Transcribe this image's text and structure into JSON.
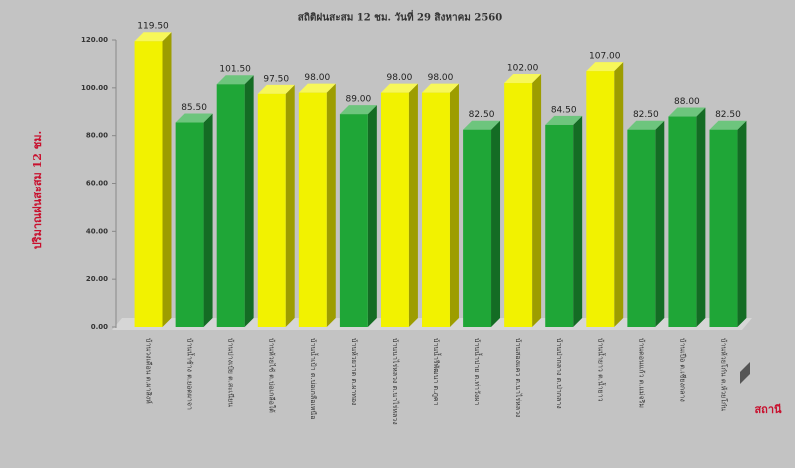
{
  "chart_data": {
    "type": "bar3d",
    "title": "สถิติฝนสะสม 12 ชม. วันที่ 29 สิงหาคม 2560",
    "y_label": "ปริมาณฝนสะสม 12 ชม.",
    "x_label": "สถานี",
    "categories": [
      "บ้านวงเดือน ต.ผาสิงห์",
      "บ้านน้ำช้าง ต.ยอดผาจา",
      "บ้านปางเป๋ย ต.สะเนียน",
      "บ้านห้วยไซ้ ต.บ่อเกลือใต้",
      "บ้านน้ำเป้า ต.บ่อเกลือเหนือ",
      "บ้านห้วยวาด ต.ผาทอง",
      "บ้านนาไร่หลวง ต.นาไร่หลวง",
      "บ้านน้ำรีพัฒนา ต.ภูคา",
      "บ้านน้ำปาย ต.ท่าวังผา",
      "บ้านสองแคว ต.นาไร่หลวง",
      "บ้านป่ากลาง ต.ป่ากลาง",
      "บ้านน้ำยาว ต.น้ำยาว",
      "บ้านดอนแก้ว ต.แม่จริม",
      "บ้านเปือ ต.เชียงกลาง",
      "บ้านห้วยโก๋น ต.ห้วยโก๋น"
    ],
    "values": [
      119.5,
      85.5,
      101.5,
      97.5,
      98,
      89,
      98,
      98,
      82.5,
      102,
      84.5,
      107,
      82.5,
      88,
      82.5
    ],
    "value_labels": [
      "119.50",
      "85.50",
      "101.50",
      "97.50",
      "98.00",
      "89.00",
      "98.00",
      "98.00",
      "82.50",
      "102.00",
      "84.50",
      "107.00",
      "82.50",
      "88.00",
      "82.50"
    ],
    "colors": [
      "#f2f200",
      "#1fa637",
      "#1fa637",
      "#f2f200",
      "#f2f200",
      "#1fa637",
      "#f2f200",
      "#f2f200",
      "#1fa637",
      "#f2f200",
      "#1fa637",
      "#f2f200",
      "#1fa637",
      "#1fa637",
      "#1fa637"
    ],
    "ylim": [
      0,
      120
    ],
    "yticks": [
      {
        "value": 0,
        "label": "0.00"
      },
      {
        "value": 20,
        "label": "20.00"
      },
      {
        "value": 40,
        "label": "40.00"
      },
      {
        "value": 60,
        "label": "60.00"
      },
      {
        "value": 80,
        "label": "80.00"
      },
      {
        "value": 100,
        "label": "100.00"
      },
      {
        "value": 120,
        "label": "120.00"
      }
    ]
  }
}
